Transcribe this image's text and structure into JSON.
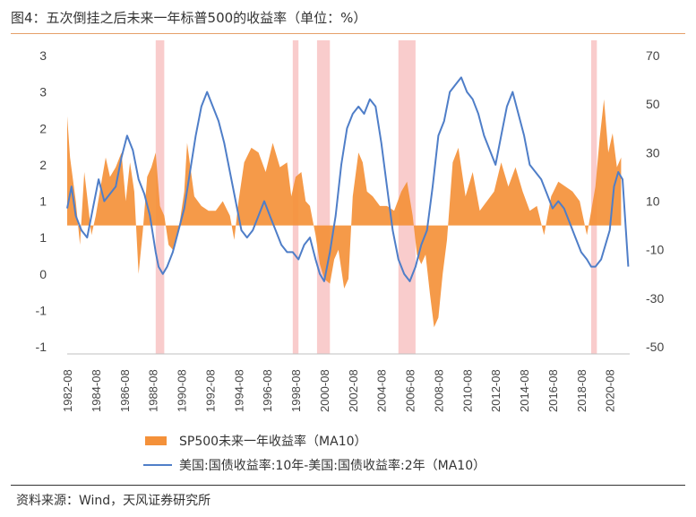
{
  "title": "图4：五次倒挂之后未来一年标普500的收益率（单位：%）",
  "source": "资料来源：Wind，天风证券研究所",
  "chart_data": {
    "type": "bar+line",
    "left_axis": {
      "ylim": [
        -1,
        3
      ],
      "tick_labels": [
        "3",
        "3",
        "2",
        "2",
        "1",
        "1",
        "0",
        "-1",
        "-1"
      ]
    },
    "right_axis": {
      "ylim": [
        -50,
        70
      ],
      "ticks": [
        70,
        50,
        30,
        10,
        -10,
        -30,
        -50
      ],
      "tick_labels": [
        "70",
        "50",
        "30",
        "10",
        "-10",
        "-30",
        "-50"
      ]
    },
    "x_axis": {
      "range": [
        1982.6,
        2022.0
      ],
      "tick_labels": [
        "1982-08",
        "1984-08",
        "1986-08",
        "1988-08",
        "1990-08",
        "1992-08",
        "1994-08",
        "1996-08",
        "1998-08",
        "2000-08",
        "2002-08",
        "2004-08",
        "2006-08",
        "2008-08",
        "2010-08",
        "2012-08",
        "2014-08",
        "2016-08",
        "2018-08",
        "2020-08"
      ],
      "ticks": [
        1982.6,
        1984.6,
        1986.6,
        1988.6,
        1990.6,
        1992.6,
        1994.6,
        1996.6,
        1998.6,
        2000.6,
        2002.6,
        2004.6,
        2006.6,
        2008.6,
        2010.6,
        2012.6,
        2014.6,
        2016.6,
        2018.6,
        2020.6
      ]
    },
    "inversion_periods": [
      [
        1988.8,
        1989.4
      ],
      [
        1998.4,
        1998.8
      ],
      [
        2000.1,
        2001.0
      ],
      [
        2005.8,
        2007.0
      ],
      [
        2019.3,
        2019.7
      ]
    ],
    "series": [
      {
        "name": "SP500未来一年收益率（MA10）",
        "type": "area",
        "axis": "right",
        "color": "#f4913a",
        "x": [
          1982.6,
          1982.8,
          1983.2,
          1983.5,
          1983.8,
          1984.0,
          1984.3,
          1984.6,
          1985.0,
          1985.3,
          1985.6,
          1986.0,
          1986.4,
          1986.7,
          1987.0,
          1987.3,
          1987.6,
          1987.9,
          1988.2,
          1988.5,
          1988.8,
          1989.1,
          1989.4,
          1989.7,
          1990.0,
          1990.4,
          1990.8,
          1991.0,
          1991.5,
          1992.0,
          1992.5,
          1993.0,
          1993.5,
          1994.0,
          1994.3,
          1994.6,
          1995.0,
          1995.5,
          1996.0,
          1996.5,
          1997.0,
          1997.5,
          1998.0,
          1998.3,
          1998.6,
          1999.0,
          1999.3,
          1999.6,
          2000.0,
          2000.3,
          2000.6,
          2001.0,
          2001.3,
          2001.6,
          2002.0,
          2002.3,
          2002.6,
          2003.0,
          2003.3,
          2003.6,
          2004.0,
          2004.5,
          2005.0,
          2005.5,
          2006.0,
          2006.4,
          2006.8,
          2007.1,
          2007.4,
          2007.7,
          2008.0,
          2008.3,
          2008.6,
          2008.9,
          2009.2,
          2009.6,
          2010.0,
          2010.5,
          2011.0,
          2011.5,
          2012.0,
          2012.5,
          2013.0,
          2013.5,
          2014.0,
          2014.5,
          2015.0,
          2015.5,
          2016.0,
          2016.5,
          2017.0,
          2017.5,
          2018.0,
          2018.5,
          2019.0,
          2019.3,
          2019.6,
          2019.9,
          2020.2,
          2020.5,
          2020.8,
          2021.1,
          2021.4
        ],
        "values": [
          45,
          28,
          10,
          -8,
          22,
          12,
          -4,
          4,
          18,
          28,
          20,
          24,
          30,
          10,
          26,
          14,
          -20,
          -2,
          20,
          24,
          30,
          8,
          4,
          -8,
          -10,
          -2,
          14,
          34,
          12,
          8,
          6,
          6,
          10,
          4,
          -6,
          10,
          26,
          32,
          30,
          22,
          34,
          24,
          26,
          12,
          20,
          22,
          10,
          8,
          -4,
          -16,
          -22,
          -24,
          -14,
          -10,
          -26,
          -22,
          12,
          30,
          26,
          14,
          12,
          8,
          8,
          6,
          14,
          18,
          4,
          -12,
          -16,
          -12,
          -28,
          -42,
          -38,
          -20,
          -6,
          26,
          32,
          12,
          22,
          6,
          10,
          14,
          26,
          16,
          24,
          14,
          6,
          8,
          -4,
          12,
          18,
          16,
          14,
          10,
          -4,
          6,
          16,
          36,
          52,
          30,
          38,
          24,
          28
        ]
      },
      {
        "name": "美国:国债收益率:10年-美国:国债收益率:2年（MA10）",
        "type": "line",
        "axis": "left",
        "color": "#4f7ec8",
        "x": [
          1982.6,
          1982.9,
          1983.2,
          1983.6,
          1984.0,
          1984.4,
          1984.8,
          1985.2,
          1985.6,
          1986.0,
          1986.4,
          1986.8,
          1987.2,
          1987.6,
          1988.0,
          1988.4,
          1988.8,
          1989.0,
          1989.3,
          1989.6,
          1990.0,
          1990.4,
          1990.8,
          1991.2,
          1991.6,
          1992.0,
          1992.4,
          1992.8,
          1993.2,
          1993.6,
          1994.0,
          1994.4,
          1994.8,
          1995.2,
          1995.6,
          1996.0,
          1996.4,
          1996.8,
          1997.2,
          1997.6,
          1998.0,
          1998.4,
          1998.8,
          1999.2,
          1999.6,
          2000.0,
          2000.3,
          2000.6,
          2001.0,
          2001.4,
          2001.8,
          2002.2,
          2002.6,
          2003.0,
          2003.4,
          2003.8,
          2004.2,
          2004.6,
          2005.0,
          2005.4,
          2005.8,
          2006.2,
          2006.6,
          2007.0,
          2007.4,
          2007.8,
          2008.2,
          2008.6,
          2009.0,
          2009.4,
          2009.8,
          2010.2,
          2010.6,
          2011.0,
          2011.4,
          2011.8,
          2012.2,
          2012.6,
          2013.0,
          2013.4,
          2013.8,
          2014.2,
          2014.6,
          2015.0,
          2015.4,
          2015.8,
          2016.2,
          2016.6,
          2017.0,
          2017.4,
          2017.8,
          2018.2,
          2018.6,
          2019.0,
          2019.3,
          2019.6,
          2020.0,
          2020.3,
          2020.6,
          2020.9,
          2021.2,
          2021.5,
          2021.9
        ],
        "values": [
          0.9,
          1.2,
          0.8,
          0.6,
          0.5,
          0.9,
          1.3,
          1.0,
          1.1,
          1.2,
          1.6,
          1.9,
          1.7,
          1.3,
          1.1,
          0.8,
          0.3,
          0.1,
          0.0,
          0.1,
          0.3,
          0.6,
          0.9,
          1.4,
          1.9,
          2.3,
          2.5,
          2.3,
          2.1,
          1.8,
          1.4,
          1.0,
          0.6,
          0.5,
          0.6,
          0.8,
          1.0,
          0.8,
          0.6,
          0.4,
          0.3,
          0.3,
          0.2,
          0.4,
          0.5,
          0.2,
          0.0,
          -0.1,
          0.3,
          0.8,
          1.5,
          2.0,
          2.2,
          2.3,
          2.2,
          2.4,
          2.3,
          1.8,
          1.2,
          0.6,
          0.2,
          0.0,
          -0.1,
          0.1,
          0.4,
          0.6,
          1.2,
          1.9,
          2.1,
          2.5,
          2.6,
          2.7,
          2.5,
          2.4,
          2.2,
          1.9,
          1.7,
          1.5,
          1.9,
          2.3,
          2.5,
          2.2,
          1.9,
          1.5,
          1.4,
          1.3,
          1.1,
          0.9,
          1.0,
          0.9,
          0.7,
          0.5,
          0.3,
          0.2,
          0.1,
          0.1,
          0.2,
          0.4,
          0.6,
          1.2,
          1.4,
          1.3,
          0.1
        ]
      }
    ]
  }
}
